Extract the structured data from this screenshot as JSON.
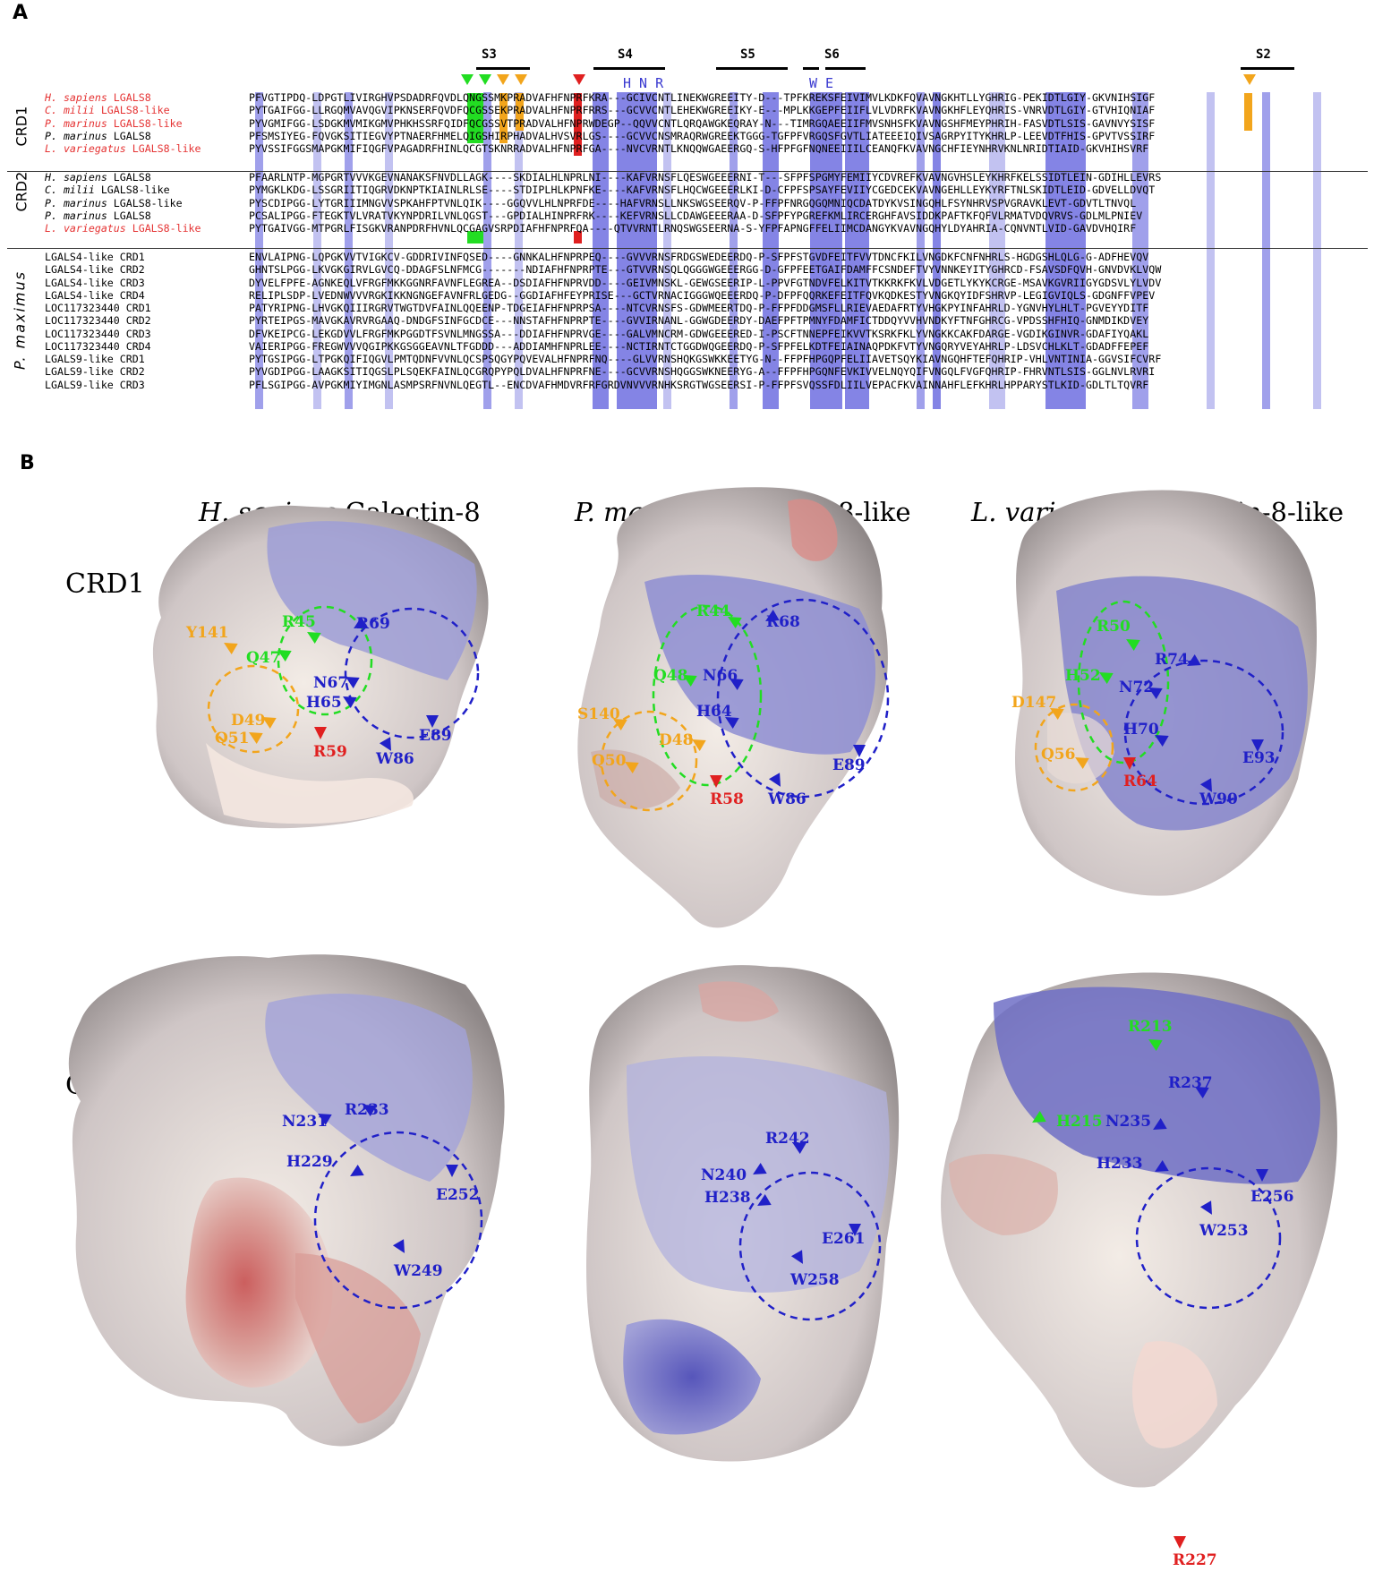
{
  "panels": {
    "a_label": "A",
    "b_label": "B"
  },
  "strands": [
    {
      "label": "S3"
    },
    {
      "label": "S4"
    },
    {
      "label": "S5"
    },
    {
      "label": "S6"
    },
    {
      "label": "S2"
    }
  ],
  "strand_residues": {
    "s4": "H N R",
    "s6": "W  E"
  },
  "groups": {
    "crd1": "CRD1",
    "crd2": "CRD2",
    "pmax": "P. maximus"
  },
  "alignment": {
    "crd1": [
      {
        "genus": "H. sapiens",
        "gene": " LGALS8",
        "red": true,
        "seq": "PFVGTIPDQ-LDPGTLIVIRGHVPSDADRFQVDLQNGSSMKPRADVAFHFNPRFKRA---GCIVCNTLINEKWGREEITY-D---TPFKREKSFEIVIMVLKDKFQVAVNGKHTLLYGHRIG-PEKIDTLGIY-GKVNIHSIGF"
      },
      {
        "genus": "C. milii",
        "gene": " LGALS8-like",
        "red": true,
        "seq": "PYTGAIFGG-LLRGQMVAVQGVIPKNSERFQVDFQCGSSEKPRADVALHFNPRFRRS---GCVVCNTLEHEKWGREEIKY-E---MPLKKGEPFEIIFLVLVDRFKVAVNGKHFLEYQHRIS-VNRVDTLGIY-GTVHIQNIAF"
      },
      {
        "genus": "P. marinus",
        "gene": " LGALS8-like",
        "red": true,
        "seq": "PYVGMIFGG-LSDGKMVMIKGMVPHKHSSRFQIDFQCGSSVTPRADVALHFNPRWDEGP--QQVVCNTLQRQAWGKEQRAY-N---TIMRGQAEEIIFMVSNHSFKVAVNGSHFMEYPHRIH-FASVDTLSIS-GAVNVYSISF"
      },
      {
        "genus": "P. marinus",
        "gene": " LGALS8",
        "red": false,
        "seq": "PFSMSIYEG-FQVGKSITIEGVYPTNAERFHMELQIGSHIRPHADVALHVSVRLGS----GCVVCNSMRAQRWGREEKTGGG-TGFPFVRGQSFGVTLIATEEEIQIVSAGRPYITYKHRLP-LEEVDTFHIS-GPVTVSSIRF"
      },
      {
        "genus": "L. variegatus",
        "gene": " LGALS8-like",
        "red": true,
        "seq": "PYVSSIFGGSMAPGKMIFIQGFVPAGADRFHINLQCGTSKNRRADVALHFNPRFGA----NVCVRNTLKNQQWGAEERGQ-S-HFPFGFNQNEEIIILCEANQFKVAVNGCHFIEYNHRVKNLNRIDTIAID-GKVHIHSVRF"
      }
    ],
    "crd2": [
      {
        "genus": "H. sapiens",
        "gene": " LGALS8",
        "red": false,
        "seq": "PFAARLNTP-MGPGRTVVVKGEVNANAKSFNVDLLAGK----SKDIALHLNPRLNI----KAFVRNSFLQESWGEEERNI-T---SFPFSPGMYFEMIIYCDVREFKVAVNGVHSLEYKHRFKELSSIDTLEIN-GDIHLLEVRS"
      },
      {
        "genus": "C. milii",
        "gene": " LGALS8-like",
        "red": false,
        "seq": "PYMGKLKDG-LSSGRIITIQGRVDKNPTKIAINLRLSE----STDIPLHLKPNFKE----KAFVRNSFLHQCWGEEERLKI-D-CFPFSPSAYFEVIIYCGEDCEKVAVNGEHLLEYKYRFTNLSKIDTLEID-GDVELLDVQT"
      },
      {
        "genus": "P. marinus",
        "gene": " LGALS8-like",
        "red": false,
        "seq": "PYSCDIPGG-LYTGRIIIMNGVVSPKAHFPTVNLQIK----GGQVVLHLNPRFDE----HAFVRNSLLNKSWGSEERQV-P-FFPFNRGQGQMNIQCDATDYKVSINGQHLFSYNHRVSPVGRAVKLEVT-GDVTLTNVQL"
      },
      {
        "genus": "P. marinus",
        "gene": " LGALS8",
        "red": false,
        "seq": "PCSALIPGG-FTEGKTVLVRATVKYNPDRILVNLQGST---GPDIALHINPRFRK----KEFVRNSLLCDAWGEEERAA-D-SFPFYPGREFKMLIRCERGHFAVSIDDKPAFTKFQFVLRMATVDQVRVS-GDLMLPNIEV"
      },
      {
        "genus": "L. variegatus",
        "gene": " LGALS8-like",
        "red": true,
        "seq": "PYTGAIVGG-MTPGRLFISGKVRANPDRFHVNLQCGAGVSRPDIAFHFNPRFQA----QTVVRNTLRNQSWGSEERNA-S-YFPFAPNGFFELIIMCDANGYKVAVNGQHYLDYAHRIA-CQNVNTLVID-GAVDVHQIRF"
      }
    ],
    "pmax": [
      {
        "name": "LGALS4-like CRD1",
        "seq": "ENVLAIPNG-LQPGKVVTVIGKCV-GDDRIVINFQSED----GNNKALHFNPRPEQ----GVVVRNSFRDGSWEDEERDQ-P-SFPFSTGVDFEITFVVTDNCFKILVNGDKFCNFNHRLS-HGDGSHLQLG-G-ADFHEVQV"
      },
      {
        "name": "LGALS4-like CRD2",
        "seq": "GHNTSLPGG-LKVGKGIRVLGVCQ-DDAGFSLNFMCG-------NDIAFHFNPRPTE---GTVVRNSQLQGGGWGEEERGG-D-GFPFEETGAIFDAMFFCSNDEFTVYVNNKEYITYGHRCD-FSAVSDFQVH-GNVDVKLVQW"
      },
      {
        "name": "LGALS4-like CRD3",
        "seq": "DYVELFPFE-AGNKEQLVFRGFMKKGGNRFAVNFLEGREA--DSDIAFHFNPRVDD----GEIVMNSKL-GEWGSEERIP-L-PPVFGTNDVFELKITVTKKRKFKVLVDGETLYKYKCRGE-MSAVKGVRIIGYGDSVLYLVDV"
      },
      {
        "name": "LGALS4-like CRD4",
        "seq": "RELIPLSDP-LVEDNWVVVRGKIKKNGNGEFAVNFRLGEDG--GGDIAFHFEYPRISE---GCTVRNACIGGGWQEEERDQ-P-DFPFQQRKEFEITFQVKQDKESTYVNGKQYIDFSHRVP-LEGIGVIQLS-GDGNFFVPEV"
      },
      {
        "name": "LOC117323440 CRD1",
        "seq": "PATYRIPNG-LHVGKQIIIRGRVTWGTDVFAINLQQEENP-TDGEIAFHFNPRPSA----NTCVRNSFS-GDWMEERTDQ-P-FFPFDDGMSFLLRIEVAEDAFRTYVHGKPYINFAHRLD-YGNVHYLHLT-PGVEYYDITF"
      },
      {
        "name": "LOC117323440 CRD2",
        "seq": "PYRTEIPGS-MAVGKAVRVRGAAQ-DNDGFSINFGCDCE---NNSTAFHFNPRPTE----GVVIRNANL-GGWGDEERDY-DAEFPFTPMNYFDAMFICTDDQYVVHVNDKYFTNFGHRCG-VPDSSHFHIQ-GNMDIKDVEY"
      },
      {
        "name": "LOC117323440 CRD3",
        "seq": "DFVKEIPCG-LEKGDVVLFRGFMKPGGDTFSVNLMNGSSA---DDIAFHFNPRVGE----GALVMNCRM-GDWGEEERED-I-PSCFTNNEPFEIKVVTKSRKFKLYVNGKKCAKFDARGE-VGDIKGINVR-GDAFIYQAKL"
      },
      {
        "name": "LOC117323440 CRD4",
        "seq": "VAIERIPGG-FREGWVVVQGIPKKGSGGEAVNLTFGDDD---ADDIAMHFNPRLEE----NCTIRNTCTGGDWQGEERDQ-P-SFPFELKDTFEIAINAQPDKFVTYVNGQRYVEYAHRLP-LDSVCHLKLT-GDADFFEPEF"
      },
      {
        "name": "LGALS9-like CRD1",
        "seq": "PYTGSIPGG-LTPGKQIFIQGVLPMTQDNFVVNLQCSPSQGYPQVEVALHFNPRFNQ----GLVVRNSHQKGSWKKEETYG-N--FFPFHPGQPFELIIAVETSQYKIAVNGQHFTEFQHRIP-VHLVNTINIA-GGVSIFCVRF"
      },
      {
        "name": "LGALS9-like CRD2",
        "seq": "PYVGDIPGG-LAAGKSITIQGSLPLSQEKFAINLQCGRQPYPQLDVALHFNPRFNE----GCVVRNSHQGGSWKNEERYG-A--FFPFHPGQNFEVKIVVELNQYQIFVNGQLFVGFQHRIP-FHRVNTLSIS-GGLNVLRVRI"
      },
      {
        "name": "LGALS9-like CRD3",
        "seq": "PFLSGIPGG-AVPGKMIYIMGNLASMPSRFNVNLQEGTL--ENCDVAFHMDVRFRFGRDVNVVVRNHKSRGTWGSEERSI-P-FFPFSVQSSFDLIILVEPACFKVAINNAHFLEFKHRLHPPARYSTLKID-GDLTLTQVRF"
      }
    ]
  },
  "panelB": {
    "columns": [
      {
        "italic": "H. sapiens",
        "rest": " Galectin-8"
      },
      {
        "italic": "P. marinus",
        "rest": " Galectin-8-like"
      },
      {
        "italic": "L. variegatus",
        "rest": " Galectin-8-like"
      }
    ],
    "rows": [
      "CRD1",
      "CRD2"
    ],
    "labels": {
      "hs_crd1": {
        "y141": "Y141",
        "q47": "Q47",
        "r45": "R45",
        "r69": "R69",
        "n67": "N67",
        "h65": "H65",
        "d49": "D49",
        "q51": "Q51",
        "r59": "R59",
        "e89": "E89",
        "w86": "W86"
      },
      "pm_crd1": {
        "r44": "R44",
        "r68": "R68",
        "q48": "Q48",
        "n66": "N66",
        "s140": "S140",
        "h64": "H64",
        "d48": "D48",
        "q50": "Q50",
        "r58": "R58",
        "e89": "E89",
        "w86": "W86"
      },
      "lv_crd1": {
        "r50": "R50",
        "h52": "H52",
        "n72": "N72",
        "r74": "R74",
        "d147": "D147",
        "h70": "H70",
        "q56": "Q56",
        "r64": "R64",
        "e93": "E93",
        "w90": "W90"
      },
      "hs_crd2": {
        "n231": "N231",
        "r233": "R233",
        "h229": "H229",
        "e252": "E252",
        "w249": "W249"
      },
      "pm_crd2": {
        "r242": "R242",
        "n240": "N240",
        "h238": "H238",
        "e261": "E261",
        "w258": "W258"
      },
      "lv_crd2": {
        "r213": "R213",
        "r237": "R237",
        "h215": "H215",
        "n235": "N235",
        "h233": "H233",
        "e256": "E256",
        "w253": "W253",
        "r227": "R227"
      }
    }
  },
  "colors": {
    "green": "#22dd22",
    "orange": "#f2a51c",
    "blue": "#2020c8",
    "red": "#e02020",
    "shade_dark": "#6f6fe0",
    "shade_light": "#b7b7ef"
  }
}
